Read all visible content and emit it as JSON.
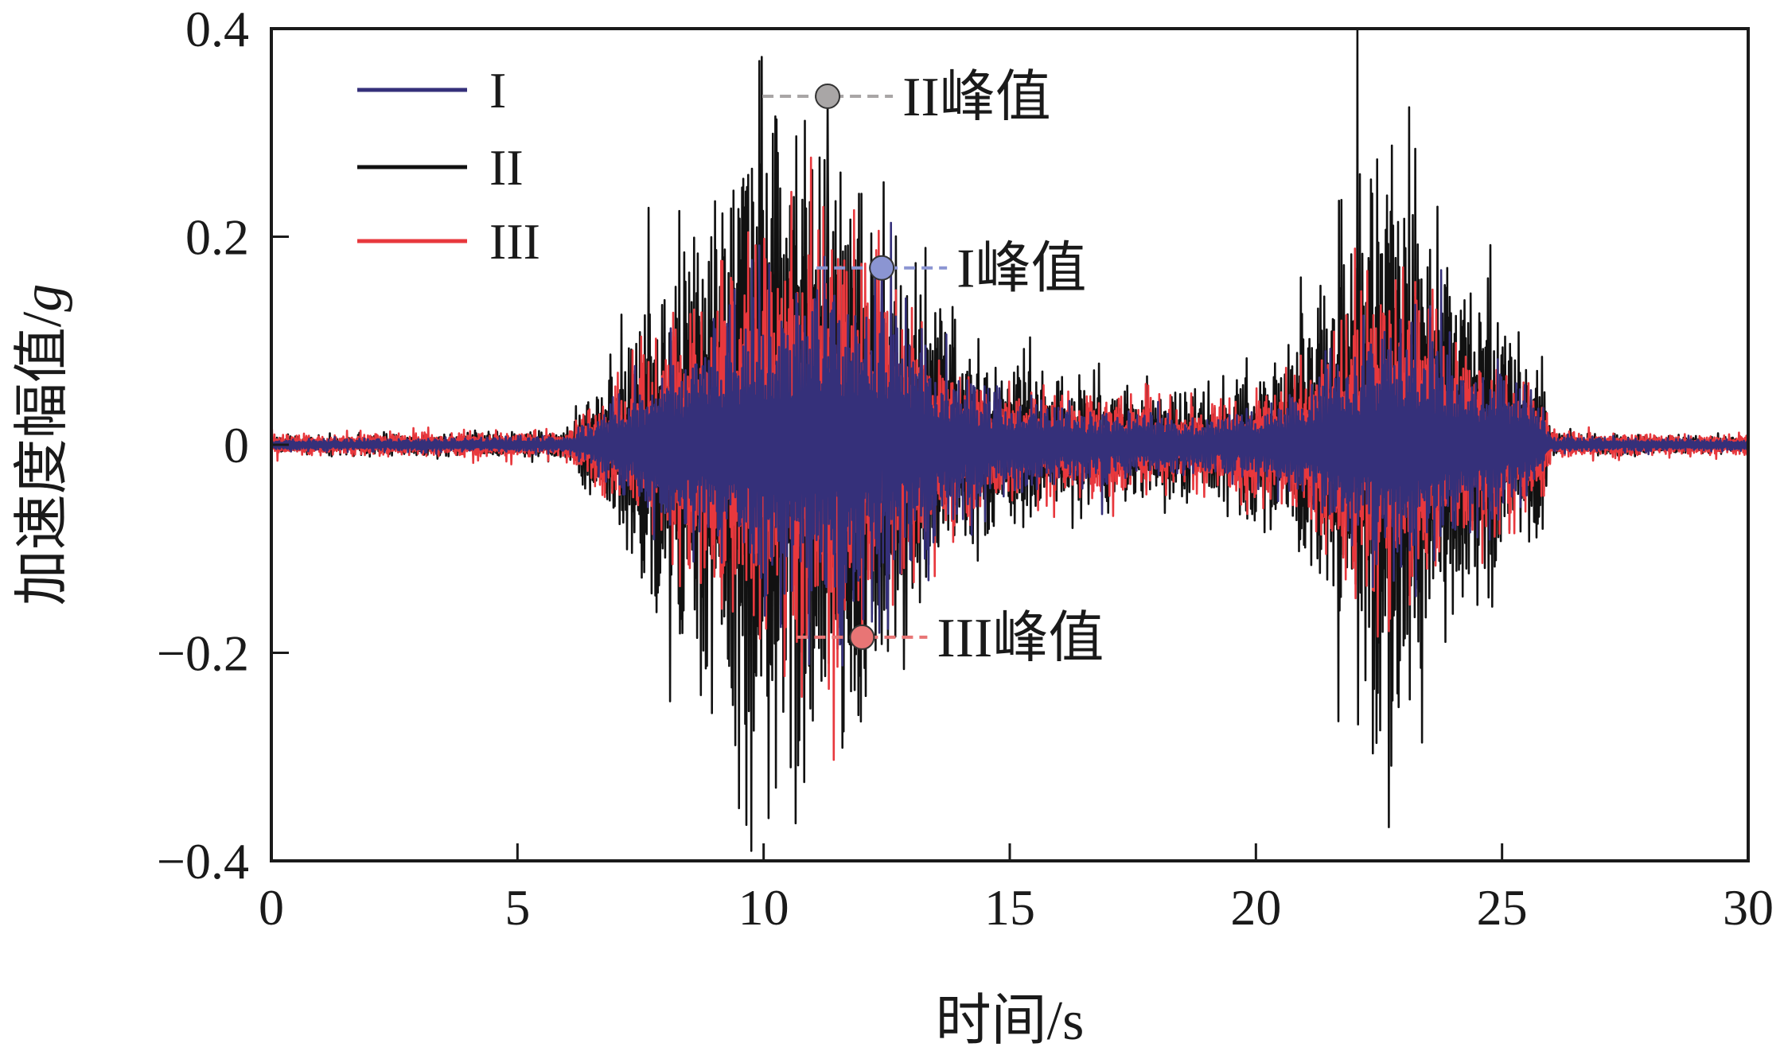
{
  "chart_data": {
    "type": "line",
    "title": "",
    "xlabel": "时间/s",
    "ylabel_main": "加速度幅值/",
    "ylabel_unit": "g",
    "xlim": [
      0,
      30
    ],
    "ylim": [
      -0.4,
      0.4
    ],
    "x_ticks": [
      0,
      5,
      10,
      15,
      20,
      25,
      30
    ],
    "x_tick_labels": [
      "0",
      "5",
      "10",
      "15",
      "20",
      "25",
      "30"
    ],
    "y_ticks": [
      -0.4,
      -0.2,
      0,
      0.2,
      0.4
    ],
    "y_tick_labels": [
      "−0.4",
      "−0.2",
      "0",
      "0.2",
      "0.4"
    ],
    "grid": false,
    "legend": "top-left",
    "series": [
      {
        "name": "I",
        "color": "#35307a",
        "envelope_times": [
          0,
          6.0,
          7.0,
          8.0,
          9.0,
          10.0,
          11.0,
          12.0,
          12.5,
          13.0,
          14.0,
          15.0,
          17.0,
          19.0,
          20.5,
          21.5,
          22.5,
          23.0,
          24.0,
          25.0,
          25.8,
          26.0,
          30
        ],
        "envelope_amps": [
          0.004,
          0.006,
          0.03,
          0.06,
          0.09,
          0.12,
          0.13,
          0.12,
          0.12,
          0.09,
          0.05,
          0.035,
          0.025,
          0.02,
          0.03,
          0.06,
          0.09,
          0.1,
          0.07,
          0.05,
          0.03,
          0.006,
          0.004
        ],
        "peak": {
          "t": 12.4,
          "value": 0.17
        }
      },
      {
        "name": "II",
        "color": "#111111",
        "envelope_times": [
          0,
          6.0,
          7.0,
          8.0,
          9.0,
          10.0,
          11.0,
          12.0,
          13.0,
          14.0,
          15.0,
          17.0,
          19.0,
          20.5,
          21.5,
          22.5,
          23.0,
          24.0,
          25.0,
          25.8,
          26.0,
          30
        ],
        "envelope_amps": [
          0.006,
          0.01,
          0.06,
          0.14,
          0.22,
          0.26,
          0.26,
          0.22,
          0.14,
          0.08,
          0.06,
          0.045,
          0.035,
          0.06,
          0.14,
          0.22,
          0.22,
          0.14,
          0.1,
          0.06,
          0.008,
          0.006
        ],
        "peak": {
          "t": 11.3,
          "value": 0.335
        }
      },
      {
        "name": "III",
        "color": "#e8383d",
        "envelope_times": [
          0,
          6.0,
          7.0,
          8.0,
          9.0,
          10.0,
          11.0,
          12.0,
          13.0,
          14.0,
          15.0,
          17.0,
          19.0,
          20.5,
          21.5,
          22.5,
          23.0,
          24.0,
          25.0,
          25.8,
          26.0,
          30
        ],
        "envelope_amps": [
          0.008,
          0.01,
          0.04,
          0.08,
          0.12,
          0.15,
          0.16,
          0.14,
          0.1,
          0.06,
          0.045,
          0.035,
          0.03,
          0.045,
          0.09,
          0.12,
          0.12,
          0.09,
          0.06,
          0.04,
          0.01,
          0.008
        ],
        "peak": {
          "t": 12.0,
          "value": -0.185
        }
      }
    ],
    "annotations": [
      {
        "label": "II峰值",
        "series": "II",
        "marker_color": "#a9a6a6",
        "line_color": "#a9a6a6"
      },
      {
        "label": "I峰值",
        "series": "I",
        "marker_color": "#8b95d2",
        "line_color": "#8b95d2"
      },
      {
        "label": "III峰值",
        "series": "III",
        "marker_color": "#e87575",
        "line_color": "#e87575"
      }
    ]
  }
}
